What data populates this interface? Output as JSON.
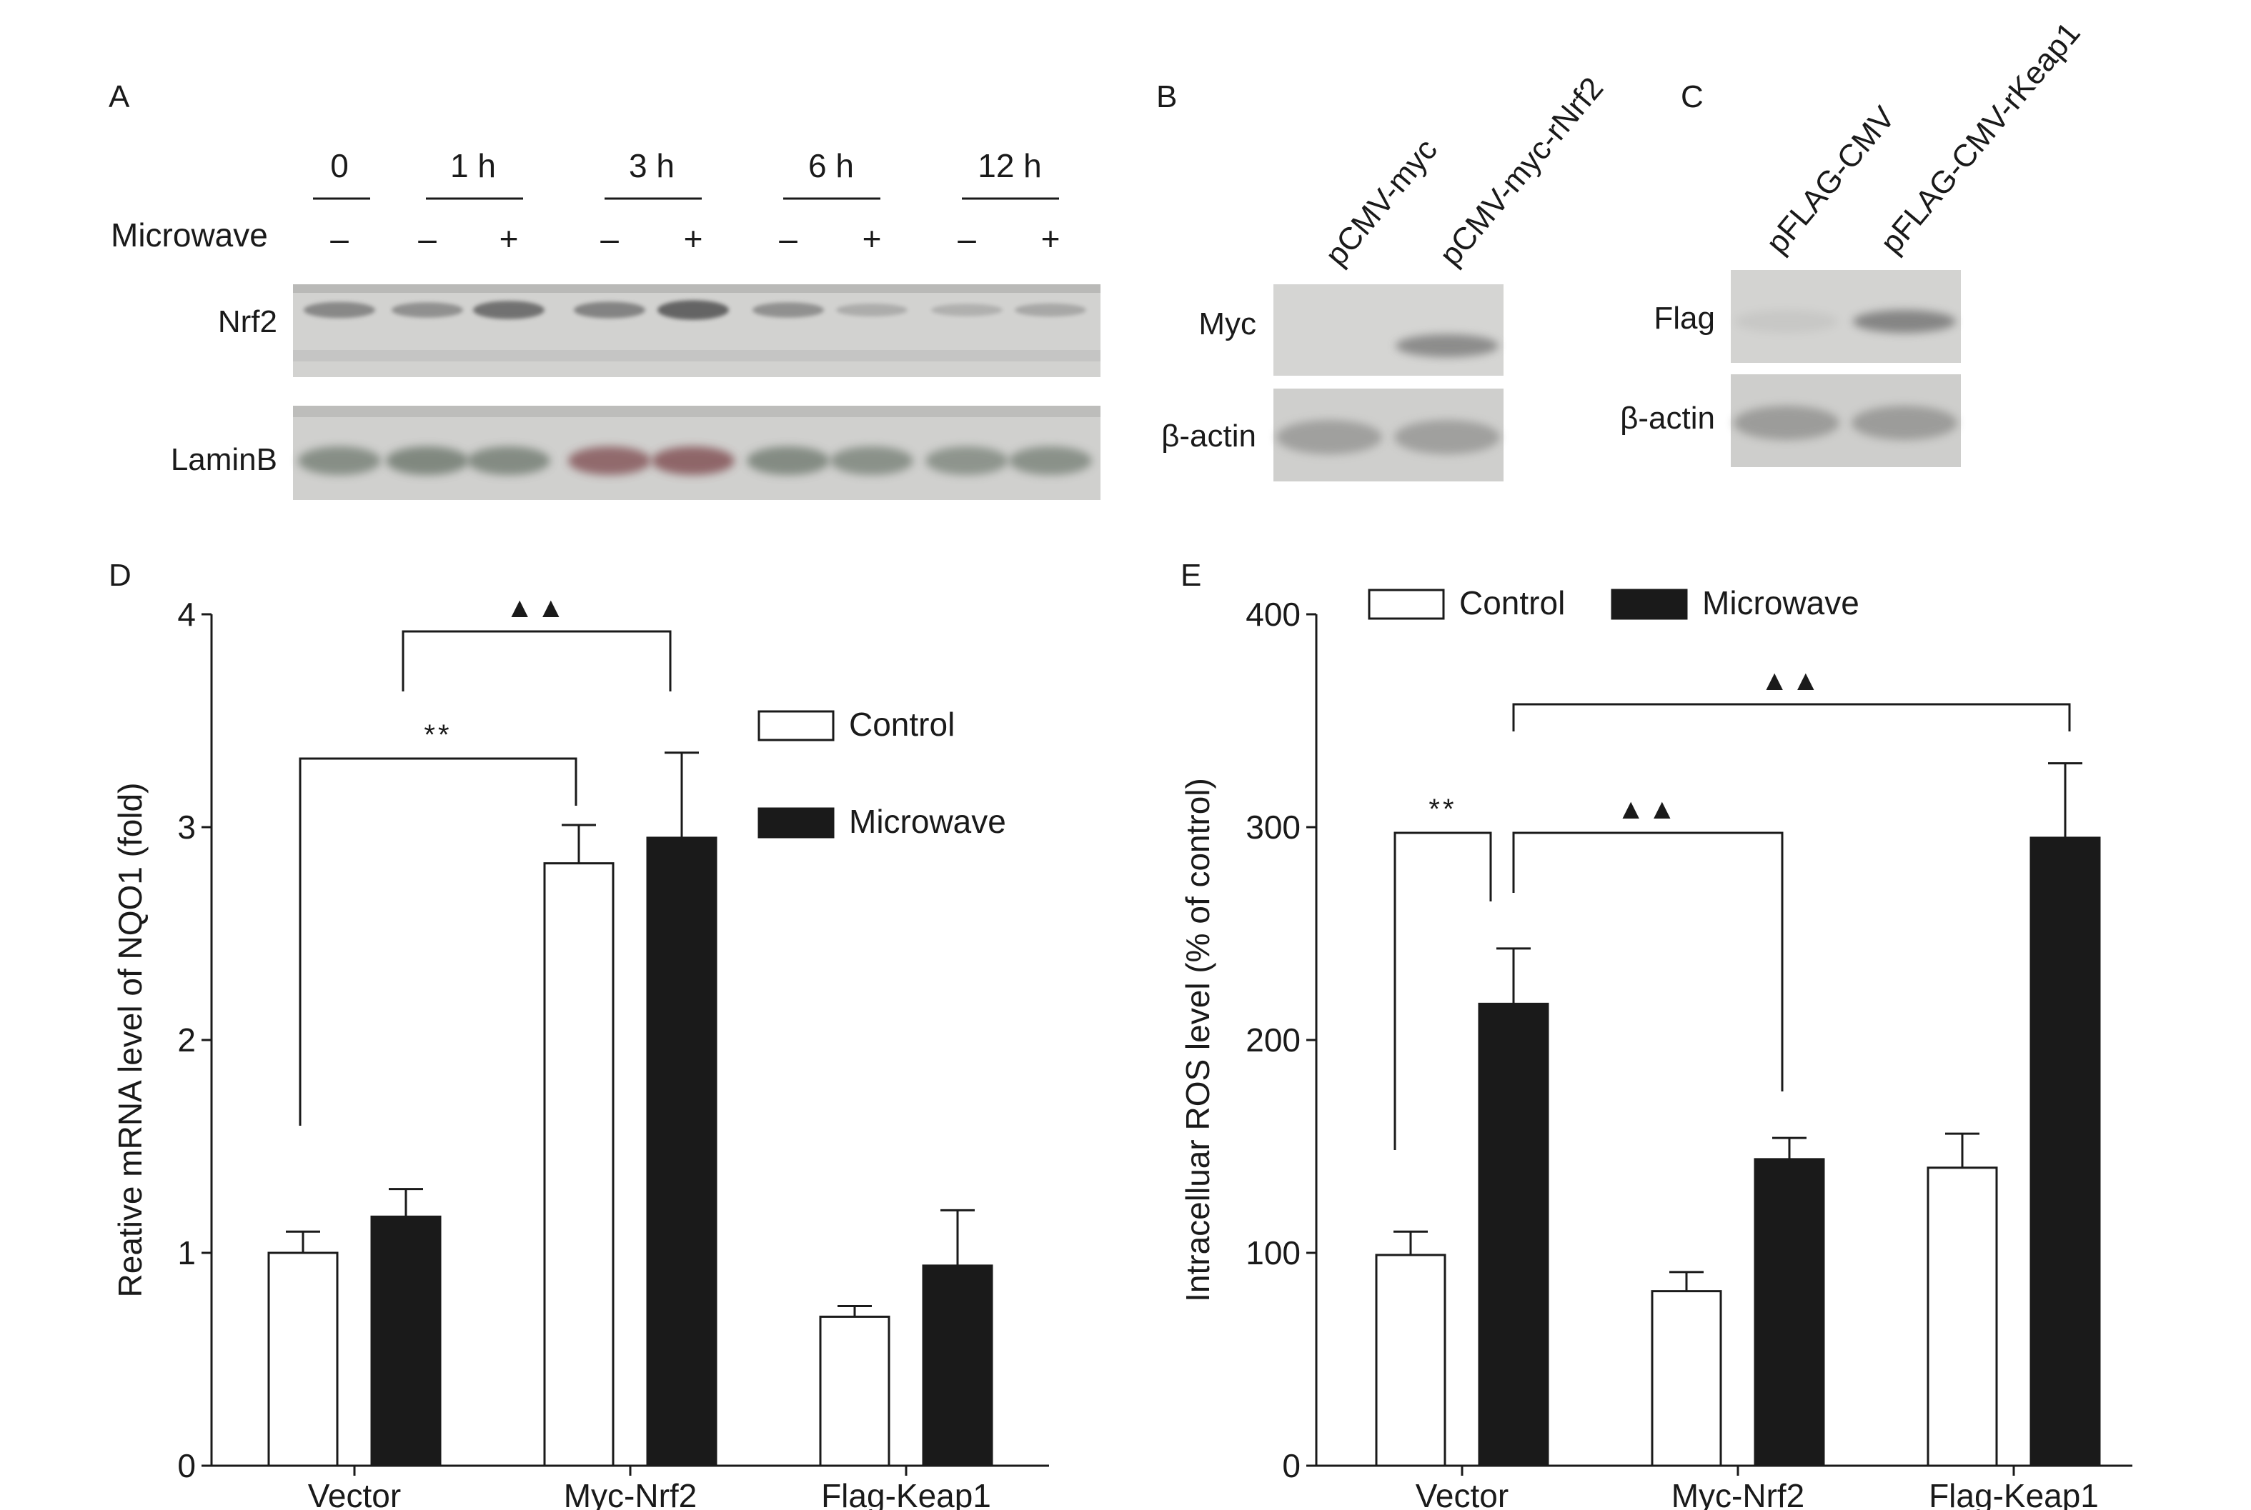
{
  "panels": {
    "A": "A",
    "B": "B",
    "C": "C",
    "D": "D",
    "E": "E"
  },
  "blotA": {
    "time_groups": [
      "0",
      "1 h",
      "3 h",
      "6 h",
      "12 h"
    ],
    "treatment_label": "Microwave",
    "lanes": [
      "–",
      "–",
      "+",
      "–",
      "+",
      "–",
      "+",
      "–",
      "+"
    ],
    "rows": [
      "Nrf2",
      "LaminB"
    ],
    "nrf2_intensity": [
      0.55,
      0.45,
      0.8,
      0.6,
      0.95,
      0.45,
      0.15,
      0.1,
      0.2
    ],
    "lamin_intensity": [
      0.65,
      0.75,
      0.7,
      0.8,
      0.85,
      0.7,
      0.6,
      0.55,
      0.6
    ]
  },
  "blotB": {
    "lanes": [
      "pCMV-myc",
      "pCMV-myc-rNrf2"
    ],
    "rows": [
      "Myc",
      "β-actin"
    ],
    "myc_intensity": [
      0.0,
      0.7
    ],
    "actin_intensity": [
      0.8,
      0.8
    ]
  },
  "blotC": {
    "lanes": [
      "pFLAG-CMV",
      "pFLAG-CMV-rKeap1"
    ],
    "rows": [
      "Flag",
      "β-actin"
    ],
    "flag_intensity": [
      0.1,
      0.75
    ],
    "actin_intensity": [
      0.85,
      0.85
    ]
  },
  "colors": {
    "control": "#ffffff",
    "microwave": "#1a1a1a",
    "blot_bg": "#d4d4d2",
    "blot_band": "#5a5a5a",
    "lamin_tint": "#5f6a5e",
    "laminb_red": "#7a4548"
  },
  "chart_data": [
    {
      "type": "bar",
      "categories": [
        "Vector",
        "Myc-Nrf2",
        "Flag-Keap1"
      ],
      "series": [
        {
          "name": "Control",
          "values": [
            1.0,
            2.83,
            0.7
          ],
          "errors": [
            0.1,
            0.18,
            0.05
          ]
        },
        {
          "name": "Microwave",
          "values": [
            1.17,
            2.95,
            0.94
          ],
          "errors": [
            0.13,
            0.4,
            0.26
          ]
        }
      ],
      "ylabel": "Reative mRNA level of NQO1 (fold)",
      "ylim": [
        0,
        4
      ],
      "yticks": [
        0,
        1,
        2,
        3,
        4
      ],
      "legend": "right",
      "annotations": [
        {
          "label": "**",
          "from": "Vector-Control",
          "to": "Myc-Nrf2-Control"
        },
        {
          "label": "▲▲",
          "from": "Vector-Microwave",
          "to": "Myc-Nrf2-Microwave"
        }
      ]
    },
    {
      "type": "bar",
      "categories": [
        "Vector",
        "Myc-Nrf2",
        "Flag-Keap1"
      ],
      "series": [
        {
          "name": "Control",
          "values": [
            99,
            82,
            140
          ],
          "errors": [
            11,
            9,
            16
          ]
        },
        {
          "name": "Microwave",
          "values": [
            217,
            144,
            295
          ],
          "errors": [
            26,
            10,
            35
          ]
        }
      ],
      "ylabel": "Intracelluar ROS level (% of control)",
      "ylim": [
        0,
        400
      ],
      "yticks": [
        0,
        100,
        200,
        300,
        400
      ],
      "legend": "top",
      "annotations": [
        {
          "label": "**",
          "from": "Vector-Control",
          "to": "Vector-Microwave"
        },
        {
          "label": "▲▲",
          "from": "Vector-Microwave",
          "to": "Myc-Nrf2-Microwave"
        },
        {
          "label": "▲▲",
          "from": "Vector-Microwave",
          "to": "Flag-Keap1-Microwave"
        }
      ]
    }
  ]
}
